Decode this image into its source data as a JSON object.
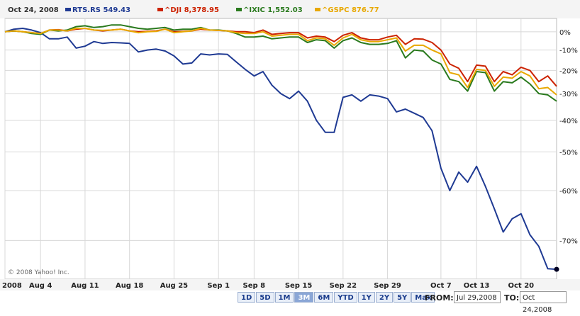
{
  "chart_data": {
    "type": "line",
    "date": "Oct 24, 2008",
    "x": [
      "Jul 29",
      "Jul 30",
      "Jul 31",
      "Aug 1",
      "Aug 4",
      "Aug 5",
      "Aug 6",
      "Aug 7",
      "Aug 8",
      "Aug 11",
      "Aug 12",
      "Aug 13",
      "Aug 14",
      "Aug 15",
      "Aug 18",
      "Aug 19",
      "Aug 20",
      "Aug 21",
      "Aug 22",
      "Aug 25",
      "Aug 26",
      "Aug 27",
      "Aug 28",
      "Aug 29",
      "Sep 2",
      "Sep 3",
      "Sep 4",
      "Sep 5",
      "Sep 8",
      "Sep 9",
      "Sep 10",
      "Sep 11",
      "Sep 12",
      "Sep 15",
      "Sep 16",
      "Sep 17",
      "Sep 18",
      "Sep 19",
      "Sep 22",
      "Sep 23",
      "Sep 24",
      "Sep 25",
      "Sep 26",
      "Sep 29",
      "Sep 30",
      "Oct 1",
      "Oct 2",
      "Oct 3",
      "Oct 6",
      "Oct 7",
      "Oct 8",
      "Oct 9",
      "Oct 10",
      "Oct 13",
      "Oct 14",
      "Oct 15",
      "Oct 16",
      "Oct 17",
      "Oct 20",
      "Oct 21",
      "Oct 22",
      "Oct 23",
      "Oct 24"
    ],
    "series": [
      {
        "name": "RTS.RS",
        "value_label": "549.43",
        "color": "#1f3a93",
        "values": [
          0,
          1.5,
          2,
          1,
          -0.5,
          -4,
          -4,
          -3,
          -9,
          -8,
          -5.5,
          -6.5,
          -6,
          -6.2,
          -6.5,
          -11,
          -10,
          -9.5,
          -10.5,
          -13,
          -17,
          -16.5,
          -12,
          -12.5,
          -12,
          -12.2,
          -16,
          -19.5,
          -22.5,
          -20.5,
          -26.5,
          -30,
          -32,
          -29,
          -33,
          -40,
          -44,
          -44,
          -31.5,
          -30.5,
          -33,
          -30.5,
          -31,
          -32,
          -37,
          -36,
          -37.5,
          -39,
          -43.5,
          -54.5,
          -60,
          -55.5,
          -58,
          -54,
          -59,
          -64,
          -68.5,
          -66,
          -65,
          -69,
          -71,
          -74.5,
          -74.6
        ]
      },
      {
        "name": "^DJI",
        "value_label": "8,378.95",
        "color": "#cc2200",
        "values": [
          0,
          0.5,
          0,
          -0.5,
          -1,
          1,
          1.2,
          0.5,
          1.5,
          2,
          1,
          0.5,
          1,
          1.5,
          0.5,
          0,
          0.2,
          0.5,
          1.5,
          0,
          0.2,
          0.5,
          1.5,
          1,
          0.8,
          0.5,
          0,
          0,
          -0.5,
          1,
          -1.5,
          -1,
          -0.5,
          -0.5,
          -3.5,
          -2.5,
          -3,
          -5.5,
          -2,
          -0.5,
          -3.5,
          -4.5,
          -4.5,
          -3,
          -2,
          -7,
          -4,
          -4.2,
          -6,
          -10,
          -17,
          -19,
          -25,
          -17.5,
          -18,
          -25,
          -20.5,
          -22,
          -18.5,
          -20,
          -25,
          -22.5,
          -27
        ]
      },
      {
        "name": "^IXIC",
        "value_label": "1,552.03",
        "color": "#2a7a1e",
        "values": [
          0,
          0.5,
          0,
          -1,
          -1.5,
          1,
          0.5,
          1,
          3,
          3.5,
          2.5,
          3,
          4,
          4,
          3,
          2,
          1.5,
          2,
          2.5,
          1,
          1.5,
          1.5,
          2.5,
          1,
          1,
          0.5,
          -1,
          -3,
          -3,
          -2.5,
          -4,
          -3.5,
          -3,
          -3,
          -6,
          -4.5,
          -5,
          -9,
          -5,
          -3.5,
          -6,
          -7,
          -7,
          -6.5,
          -5,
          -14,
          -10,
          -10.5,
          -15,
          -17,
          -24,
          -25,
          -29,
          -20.5,
          -21,
          -29,
          -25,
          -25.5,
          -23,
          -26,
          -30,
          -30.5,
          -33
        ]
      },
      {
        "name": "^GSPC",
        "value_label": "876.77",
        "color": "#e8a800",
        "values": [
          0,
          0.5,
          0,
          -0.5,
          -1,
          1,
          1,
          0.5,
          2,
          2,
          1,
          0.8,
          1,
          1.5,
          0.5,
          -0.5,
          0,
          0.2,
          1.5,
          -0.5,
          0,
          0.5,
          2,
          1,
          0.8,
          0.5,
          -0.5,
          -1,
          -1,
          0,
          -2.5,
          -2,
          -1.5,
          -1.5,
          -5,
          -3.5,
          -4,
          -7.5,
          -3.5,
          -1.5,
          -4.5,
          -5.5,
          -5.5,
          -4.5,
          -3.5,
          -10.5,
          -7.5,
          -7.5,
          -10,
          -12,
          -21,
          -22,
          -27.5,
          -19.5,
          -20,
          -27,
          -23,
          -23.5,
          -20.5,
          -22.5,
          -28,
          -27.5,
          -30.5
        ]
      }
    ],
    "y_ticks": [
      "0%",
      "-10%",
      "-20%",
      "-30%",
      "-40%",
      "-50%",
      "-60%",
      "-70%"
    ],
    "y_tick_values": [
      0,
      -10,
      -20,
      -30,
      -40,
      -50,
      -60,
      -70
    ],
    "ylim": [
      -76,
      8
    ],
    "x_tick_labels": [
      "2008",
      "Aug 4",
      "Aug 11",
      "Aug 18",
      "Aug 25",
      "Sep 1",
      "Sep 8",
      "Sep 15",
      "Sep 22",
      "Sep 29",
      "Oct 7",
      "Oct 13",
      "Oct 20"
    ],
    "x_tick_positions": [
      "Jul 29",
      "Aug 4",
      "Aug 11",
      "Aug 18",
      "Aug 25",
      "Sep 2",
      "Sep 8",
      "Sep 15",
      "Sep 22",
      "Sep 29",
      "Oct 7",
      "Oct 13",
      "Oct 20"
    ],
    "grid": true,
    "y_scale": "log",
    "legend_position": "top"
  },
  "copyright": "© 2008 Yahoo! Inc.",
  "range_buttons": [
    "1D",
    "5D",
    "1M",
    "3M",
    "6M",
    "YTD",
    "1Y",
    "2Y",
    "5Y",
    "Max"
  ],
  "active_range": "3M",
  "from_label": "FROM:",
  "from_value": "Jul 29,2008",
  "to_label": "TO:",
  "to_value": "Oct 24,2008",
  "colors": {
    "background": "#ffffff",
    "grid": "#d8d8d8",
    "header_bg": "#f4f4f4",
    "end_marker": "#000022"
  }
}
